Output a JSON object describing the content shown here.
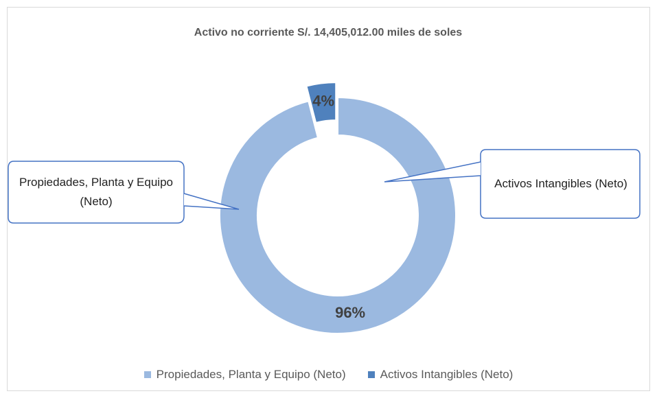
{
  "chart_data": {
    "type": "donut",
    "title": "Activo no corriente S/. 14,405,012.00 miles de soles",
    "categories": [
      "Propiedades, Planta y Equipo (Neto)",
      "Activos Intangibles (Neto)"
    ],
    "values": [
      96,
      4
    ],
    "value_labels": [
      "96%",
      "4%"
    ],
    "colors": [
      "#9bb9e0",
      "#4f81bd"
    ],
    "legend": "bottom"
  }
}
